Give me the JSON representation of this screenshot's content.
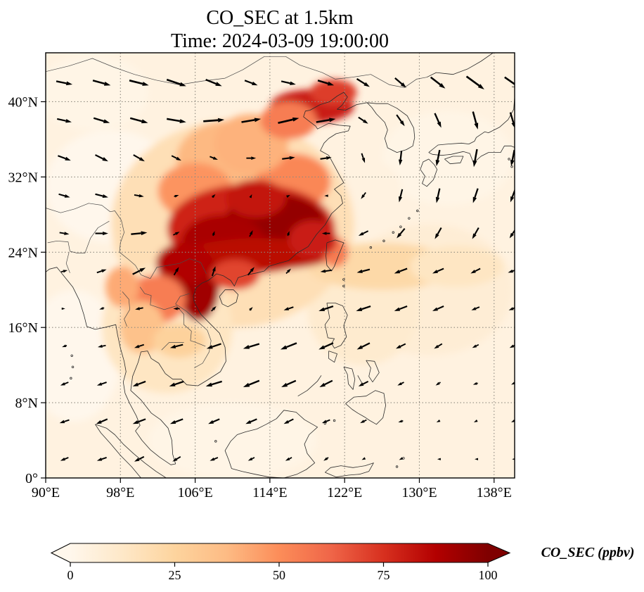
{
  "figure": {
    "title_line1": "CO_SEC at 1.5km",
    "title_line2": "Time: 2024-03-09 19:00:00"
  },
  "axes": {
    "x_tick_labels": [
      "90°E",
      "98°E",
      "106°E",
      "114°E",
      "122°E",
      "130°E",
      "138°E"
    ],
    "x_tick_lons": [
      90,
      98,
      106,
      114,
      122,
      130,
      138
    ],
    "y_tick_labels": [
      "0°",
      "8°N",
      "16°N",
      "24°N",
      "32°N",
      "40°N"
    ],
    "y_tick_lats": [
      0,
      8,
      16,
      24,
      32,
      40
    ],
    "lon_range": [
      90,
      140.2
    ],
    "lat_range": [
      0,
      45.2
    ],
    "grid_lons": [
      98,
      106,
      114,
      122,
      130,
      138
    ],
    "grid_lats": [
      8,
      16,
      24,
      32,
      40
    ]
  },
  "colorbar": {
    "label": "CO_SEC (ppbv)",
    "tick_labels": [
      "0",
      "25",
      "50",
      "75",
      "100"
    ],
    "tick_values": [
      0,
      25,
      50,
      75,
      100
    ],
    "min": 0,
    "max": 100,
    "extend": "both",
    "colormap": "OrRd",
    "stops": [
      "#fff7ec",
      "#fee8c8",
      "#fdd49e",
      "#fdbb84",
      "#fc8d59",
      "#ef6548",
      "#d7301f",
      "#b30000",
      "#7f0000"
    ]
  },
  "chart_data": {
    "type": "heatmap",
    "variable": "CO_SEC",
    "level": "1.5km",
    "time": "2024-03-09 19:00:00",
    "units": "ppbv",
    "value_range": [
      0,
      100
    ],
    "title": "CO_SEC at 1.5km",
    "subtitle": "Time: 2024-03-09 19:00:00",
    "background_value": 4,
    "plume_regions": [
      {
        "lon": 97,
        "lat": 31,
        "rlon": 7,
        "rlat": 6,
        "value": 0
      },
      {
        "lon": 93,
        "lat": 13,
        "rlon": 5,
        "rlat": 7,
        "value": 0
      },
      {
        "lon": 133,
        "lat": 34,
        "rlon": 7,
        "rlat": 5,
        "value": 2
      },
      {
        "lon": 95,
        "lat": 41,
        "rlon": 6,
        "rlat": 4,
        "value": 2
      },
      {
        "lon": 110,
        "lat": 4,
        "rlon": 9,
        "rlat": 4,
        "value": 2
      },
      {
        "lon": 124,
        "lat": 31,
        "rlon": 4,
        "rlat": 3,
        "value": 4
      },
      {
        "lon": 131,
        "lat": 20,
        "rlon": 9,
        "rlat": 7,
        "value": 8
      },
      {
        "lon": 124,
        "lat": 18,
        "rlon": 6,
        "rlat": 6,
        "value": 10
      },
      {
        "lon": 110,
        "lat": 27,
        "rlon": 13,
        "rlat": 11,
        "value": 18
      },
      {
        "lon": 103,
        "lat": 16,
        "rlon": 7,
        "rlat": 7,
        "value": 14
      },
      {
        "lon": 126,
        "lat": 22.5,
        "rlon": 8,
        "rlat": 2.5,
        "value": 22
      },
      {
        "lon": 134,
        "lat": 22.5,
        "rlon": 5,
        "rlat": 2.2,
        "value": 14
      },
      {
        "lon": 110,
        "lat": 34,
        "rlon": 6,
        "rlat": 4,
        "value": 38
      },
      {
        "lon": 106,
        "lat": 30.5,
        "rlon": 4,
        "rlat": 3,
        "value": 48
      },
      {
        "lon": 116.5,
        "lat": 31.5,
        "rlon": 4,
        "rlat": 3,
        "value": 52
      },
      {
        "lon": 112,
        "lat": 35.5,
        "rlon": 4,
        "rlat": 3.2,
        "value": 40
      },
      {
        "lon": 118.5,
        "lat": 39.5,
        "rlon": 4.5,
        "rlat": 1.8,
        "value": 80
      },
      {
        "lon": 120.8,
        "lat": 41,
        "rlon": 2.5,
        "rlat": 1.4,
        "value": 72
      },
      {
        "lon": 116,
        "lat": 38,
        "rlon": 3,
        "rlat": 2,
        "value": 55
      },
      {
        "lon": 112,
        "lat": 26.5,
        "rlon": 9,
        "rlat": 4.8,
        "value": 78
      },
      {
        "lon": 114.5,
        "lat": 27,
        "rlon": 5.5,
        "rlat": 3.2,
        "value": 95
      },
      {
        "lon": 109,
        "lat": 25,
        "rlon": 4.5,
        "rlat": 3,
        "value": 90
      },
      {
        "lon": 113,
        "lat": 23.8,
        "rlon": 8,
        "rlat": 1.7,
        "value": 85
      },
      {
        "lon": 106.3,
        "lat": 20.5,
        "rlon": 2.3,
        "rlat": 3.8,
        "value": 92
      },
      {
        "lon": 104.8,
        "lat": 22.8,
        "rlon": 3,
        "rlat": 2.2,
        "value": 88
      },
      {
        "lon": 101.8,
        "lat": 19,
        "rlon": 3.2,
        "rlat": 2.6,
        "value": 55
      },
      {
        "lon": 100.3,
        "lat": 16,
        "rlon": 2.4,
        "rlat": 2.8,
        "value": 34
      },
      {
        "lon": 104.3,
        "lat": 14.6,
        "rlon": 2.8,
        "rlat": 1.8,
        "value": 26
      },
      {
        "lon": 98.2,
        "lat": 20.3,
        "rlon": 1.8,
        "rlat": 2.2,
        "value": 42
      },
      {
        "lon": 121,
        "lat": 24,
        "rlon": 1.4,
        "rlat": 1.6,
        "value": 55
      },
      {
        "lon": 112.5,
        "lat": 29.7,
        "rlon": 3.2,
        "rlat": 2,
        "value": 82
      },
      {
        "lon": 118.6,
        "lat": 25.4,
        "rlon": 2.6,
        "rlat": 2,
        "value": 80
      },
      {
        "lon": 110.3,
        "lat": 21.6,
        "rlon": 2.6,
        "rlat": 1.6,
        "value": 70
      }
    ],
    "wind": {
      "units": "arbitrary",
      "lons": [
        92,
        96,
        100,
        104,
        108,
        112,
        116,
        120,
        124,
        128,
        132,
        136,
        140
      ],
      "lats": [
        42,
        38,
        34,
        30,
        26,
        22,
        18,
        14,
        10,
        6,
        2
      ],
      "uv": [
        [
          [
            10,
            -2
          ],
          [
            11,
            -3
          ],
          [
            12,
            -3
          ],
          [
            12,
            -4
          ],
          [
            10,
            -4
          ],
          [
            8,
            -3
          ],
          [
            9,
            -2
          ],
          [
            10,
            -3
          ],
          [
            8,
            -5
          ],
          [
            7,
            -6
          ],
          [
            9,
            -7
          ],
          [
            11,
            -8
          ],
          [
            10,
            -7
          ]
        ],
        [
          [
            9,
            -2
          ],
          [
            10,
            -3
          ],
          [
            11,
            -3
          ],
          [
            12,
            -2
          ],
          [
            13,
            1
          ],
          [
            12,
            2
          ],
          [
            13,
            3
          ],
          [
            12,
            2
          ],
          [
            6,
            -4
          ],
          [
            5,
            -7
          ],
          [
            4,
            -9
          ],
          [
            3,
            -11
          ],
          [
            3,
            -10
          ]
        ],
        [
          [
            8,
            -3
          ],
          [
            8,
            -4
          ],
          [
            7,
            -4
          ],
          [
            6,
            -3
          ],
          [
            5,
            -2
          ],
          [
            6,
            0
          ],
          [
            8,
            1
          ],
          [
            7,
            1
          ],
          [
            2,
            -6
          ],
          [
            -1,
            -9
          ],
          [
            -2,
            -10
          ],
          [
            -2,
            -11
          ],
          [
            -2,
            -10
          ]
        ],
        [
          [
            7,
            -2
          ],
          [
            8,
            -2
          ],
          [
            6,
            -1
          ],
          [
            3,
            1
          ],
          [
            2,
            2
          ],
          [
            1,
            2
          ],
          [
            2,
            1
          ],
          [
            -2,
            0
          ],
          [
            -3,
            -4
          ],
          [
            -2,
            -8
          ],
          [
            -2,
            -9
          ],
          [
            -3,
            -9
          ],
          [
            -3,
            -8
          ]
        ],
        [
          [
            6,
            -1
          ],
          [
            8,
            0
          ],
          [
            10,
            1
          ],
          [
            4,
            2
          ],
          [
            1,
            3
          ],
          [
            2,
            4
          ],
          [
            1,
            3
          ],
          [
            -5,
            0
          ],
          [
            -6,
            -3
          ],
          [
            -5,
            -6
          ],
          [
            -4,
            -7
          ],
          [
            -4,
            -7
          ],
          [
            -4,
            -6
          ]
        ],
        [
          [
            4,
            1
          ],
          [
            6,
            2
          ],
          [
            8,
            4
          ],
          [
            3,
            5
          ],
          [
            2,
            6
          ],
          [
            4,
            5
          ],
          [
            3,
            3
          ],
          [
            -7,
            -1
          ],
          [
            -8,
            -2
          ],
          [
            -8,
            -3
          ],
          [
            -7,
            -3
          ],
          [
            -6,
            -3
          ],
          [
            -6,
            -2
          ]
        ],
        [
          [
            1,
            0
          ],
          [
            -3,
            -1
          ],
          [
            -5,
            -1
          ],
          [
            -4,
            0
          ],
          [
            3,
            3
          ],
          [
            2,
            2
          ],
          [
            -6,
            -2
          ],
          [
            -9,
            -3
          ],
          [
            -9,
            -3
          ],
          [
            -8,
            -3
          ],
          [
            -7,
            -3
          ],
          [
            -5,
            -2
          ],
          [
            -5,
            -2
          ]
        ],
        [
          [
            -3,
            -1
          ],
          [
            -5,
            -1
          ],
          [
            -6,
            -2
          ],
          [
            -8,
            -2
          ],
          [
            -9,
            -3
          ],
          [
            -10,
            -3
          ],
          [
            -10,
            -4
          ],
          [
            -9,
            -4
          ],
          [
            -8,
            -4
          ],
          [
            -6,
            -3
          ],
          [
            -5,
            -3
          ],
          [
            -4,
            -2
          ],
          [
            -4,
            -2
          ]
        ],
        [
          [
            -5,
            -2
          ],
          [
            -6,
            -2
          ],
          [
            -8,
            -3
          ],
          [
            -9,
            -3
          ],
          [
            -10,
            -3
          ],
          [
            -10,
            -4
          ],
          [
            -9,
            -4
          ],
          [
            -8,
            -4
          ],
          [
            -6,
            -3
          ],
          [
            -4,
            -2
          ],
          [
            -3,
            -2
          ],
          [
            -3,
            -1
          ],
          [
            -2,
            -1
          ]
        ],
        [
          [
            -6,
            -2
          ],
          [
            -7,
            -3
          ],
          [
            -8,
            -3
          ],
          [
            -8,
            -3
          ],
          [
            -7,
            -3
          ],
          [
            -7,
            -3
          ],
          [
            -6,
            -3
          ],
          [
            -5,
            -2
          ],
          [
            -4,
            -2
          ],
          [
            -3,
            -1
          ],
          [
            -2,
            -1
          ],
          [
            -2,
            -1
          ],
          [
            -2,
            -1
          ]
        ],
        [
          [
            -5,
            -2
          ],
          [
            -6,
            -2
          ],
          [
            -6,
            -3
          ],
          [
            -5,
            -3
          ],
          [
            -5,
            -2
          ],
          [
            -4,
            -2
          ],
          [
            -4,
            -2
          ],
          [
            -3,
            -2
          ],
          [
            -2,
            -1
          ],
          [
            -2,
            -1
          ],
          [
            -1,
            0
          ],
          [
            -1,
            0
          ],
          [
            -1,
            0
          ]
        ]
      ]
    }
  }
}
